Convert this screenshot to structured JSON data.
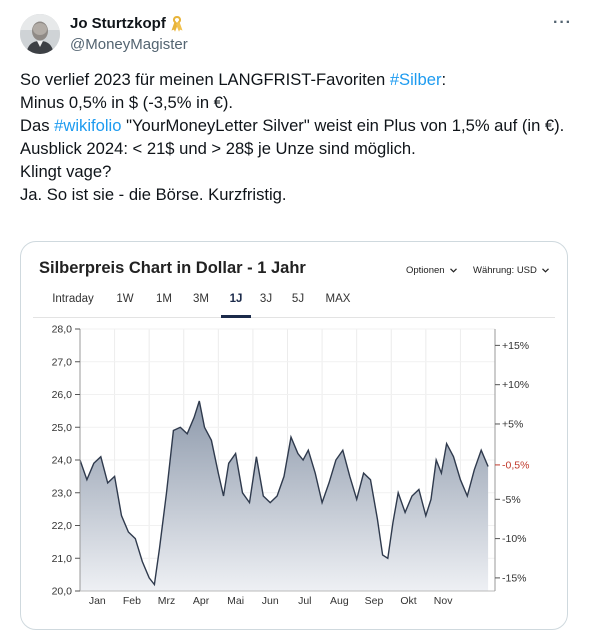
{
  "tweet": {
    "display_name": "Jo Sturtzkopf",
    "handle": "@MoneyMagister",
    "ribbon_icon": "awareness-ribbon-icon",
    "more_icon": "more-options-icon",
    "more_label": "···",
    "text": {
      "l1_pre": "So verlief 2023 für meinen LANGFRIST-Favoriten ",
      "l1_tag": "#Silber",
      "l1_post": ":",
      "l2": "Minus 0,5% in $ (-3,5% in €).",
      "l3_pre": "Das ",
      "l3_tag": "#wikifolio",
      "l3_post": " \"YourMoneyLetter Silver\" weist ein Plus von 1,5% auf (in €).",
      "l4": "Ausblick 2024: < 21$ und > 28$ je Unze sind möglich.",
      "l5": "Klingt vage?",
      "l6": "Ja. So ist sie - die Börse. Kurzfristig."
    }
  },
  "chart_card": {
    "title": "Silberpreis Chart in Dollar - 1 Jahr",
    "options_label": "Optionen",
    "currency_label": "Währung: USD",
    "tabs": [
      "Intraday",
      "1W",
      "1M",
      "3M",
      "1J",
      "3J",
      "5J",
      "MAX"
    ],
    "active_tab": "1J",
    "colors": {
      "line": "#2f3a4d",
      "fill_top": "#8d99ab",
      "fill_bottom": "#eef0f4",
      "highlight": "#c0392b",
      "accent": "#1b2a4a"
    }
  },
  "chart_data": {
    "type": "area",
    "xlabel": "",
    "ylabel": "",
    "ylim": [
      20.0,
      28.0
    ],
    "y_ticks": [
      "28,0",
      "27,0",
      "26,0",
      "25,0",
      "24,0",
      "23,0",
      "22,0",
      "21,0",
      "20,0"
    ],
    "y_tick_values": [
      28,
      27,
      26,
      25,
      24,
      23,
      22,
      21,
      20
    ],
    "x_ticks": [
      "Jan",
      "Feb",
      "Mrz",
      "Apr",
      "Mai",
      "Jun",
      "Jul",
      "Aug",
      "Sep",
      "Okt",
      "Nov"
    ],
    "right_ticks": [
      {
        "label": "+15%",
        "value": 27.5
      },
      {
        "label": "+10%",
        "value": 26.3
      },
      {
        "label": "+5%",
        "value": 25.1
      },
      {
        "label": "-0,5%",
        "value": 23.85,
        "highlight": true
      },
      {
        "label": "-5%",
        "value": 22.8
      },
      {
        "label": "-10%",
        "value": 21.6
      },
      {
        "label": "-15%",
        "value": 20.4
      }
    ],
    "x_months": [
      0,
      0.2,
      0.4,
      0.6,
      0.8,
      1.0,
      1.2,
      1.4,
      1.6,
      1.8,
      2.0,
      2.15,
      2.3,
      2.5,
      2.7,
      2.9,
      3.1,
      3.3,
      3.45,
      3.6,
      3.8,
      4.0,
      4.15,
      4.3,
      4.5,
      4.7,
      4.9,
      5.1,
      5.3,
      5.5,
      5.7,
      5.9,
      6.1,
      6.3,
      6.45,
      6.6,
      6.8,
      7.0,
      7.2,
      7.4,
      7.6,
      7.8,
      8.0,
      8.2,
      8.4,
      8.6,
      8.75,
      8.9,
      9.05,
      9.2,
      9.4,
      9.6,
      9.8,
      10.0,
      10.15,
      10.3,
      10.45,
      10.6,
      10.8,
      11.0,
      11.2,
      11.4,
      11.6,
      11.8
    ],
    "values": [
      24.0,
      23.4,
      23.9,
      24.1,
      23.3,
      23.5,
      22.3,
      21.8,
      21.6,
      20.9,
      20.4,
      20.2,
      21.3,
      23.0,
      24.9,
      25.0,
      24.8,
      25.3,
      25.8,
      25.0,
      24.6,
      23.6,
      22.9,
      23.9,
      24.2,
      23.0,
      22.7,
      24.1,
      22.9,
      22.7,
      22.9,
      23.5,
      24.7,
      24.2,
      24.0,
      24.3,
      23.6,
      22.7,
      23.3,
      24.0,
      24.3,
      23.5,
      22.8,
      23.6,
      23.4,
      22.2,
      21.1,
      21.0,
      22.1,
      23.0,
      22.4,
      22.9,
      23.1,
      22.3,
      22.8,
      24.0,
      23.6,
      24.5,
      24.1,
      23.4,
      22.9,
      23.7,
      24.3,
      23.8
    ]
  }
}
